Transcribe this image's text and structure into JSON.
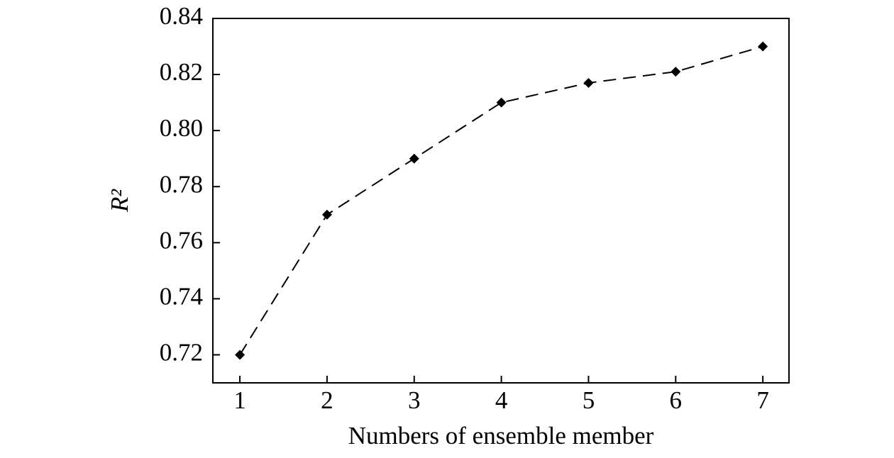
{
  "chart_data": {
    "type": "line",
    "x_label": "Numbers of ensemble member",
    "y_label": "R²",
    "x": [
      1,
      2,
      3,
      4,
      5,
      6,
      7
    ],
    "values": [
      0.72,
      0.77,
      0.79,
      0.81,
      0.817,
      0.821,
      0.83
    ],
    "color": "#000000",
    "line_style": "dashed",
    "marker": "diamond",
    "xlim": [
      0.69,
      7.3
    ],
    "xticks": [
      1,
      2,
      3,
      4,
      5,
      6,
      7
    ],
    "ylim": [
      0.71,
      0.84
    ],
    "yticks": [
      0.72,
      0.74,
      0.76,
      0.78,
      {
        "value": 0.8,
        "label": "0.80"
      },
      0.82,
      0.84
    ],
    "grid": false
  }
}
